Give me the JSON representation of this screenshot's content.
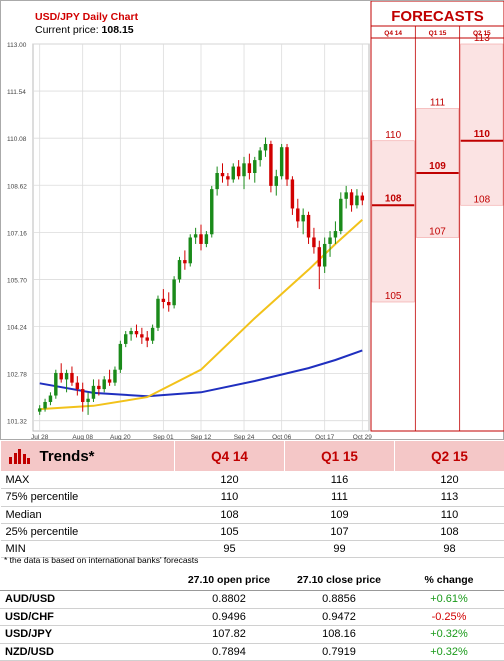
{
  "chart_title": "USD/JPY Daily Chart",
  "current_price_label": "Current price:",
  "current_price": "108.15",
  "forecast_header": "FORECASTS",
  "colors": {
    "accent_red": "#c00000",
    "up_candle": "#1a8a1a",
    "down_candle": "#d10000",
    "ma_short": "#f2c21a",
    "ma_long": "#1f2fbf",
    "forecast_fill": "#fbe3e3"
  },
  "chart_data": [
    {
      "type": "candlestick",
      "title": "USD/JPY Daily Chart",
      "y_ticks": [
        101.32,
        102.78,
        104.24,
        105.7,
        107.16,
        108.62,
        110.08,
        111.54,
        113.0
      ],
      "ylim": [
        101.0,
        113.0
      ],
      "x_tick_labels": [
        "Jul 28",
        "Aug 08",
        "Aug 20",
        "Sep 01",
        "Sep 12",
        "Sep 24",
        "Oct 06",
        "Oct 17",
        "Oct 29"
      ],
      "grid": true,
      "candles": [
        [
          101.6,
          101.8,
          101.5,
          101.7
        ],
        [
          101.7,
          102.0,
          101.6,
          101.9
        ],
        [
          101.9,
          102.2,
          101.8,
          102.1
        ],
        [
          102.1,
          102.9,
          102.0,
          102.8
        ],
        [
          102.8,
          103.1,
          102.5,
          102.6
        ],
        [
          102.6,
          102.9,
          102.2,
          102.8
        ],
        [
          102.8,
          103.0,
          102.4,
          102.5
        ],
        [
          102.5,
          102.7,
          102.1,
          102.3
        ],
        [
          102.3,
          102.5,
          101.6,
          101.9
        ],
        [
          101.9,
          102.2,
          101.5,
          102.0
        ],
        [
          102.0,
          102.6,
          101.9,
          102.4
        ],
        [
          102.4,
          102.6,
          102.1,
          102.3
        ],
        [
          102.3,
          102.7,
          102.2,
          102.6
        ],
        [
          102.6,
          102.9,
          102.4,
          102.5
        ],
        [
          102.5,
          103.0,
          102.4,
          102.9
        ],
        [
          102.9,
          103.8,
          102.8,
          103.7
        ],
        [
          103.7,
          104.1,
          103.6,
          104.0
        ],
        [
          104.0,
          104.2,
          103.8,
          104.1
        ],
        [
          104.1,
          104.3,
          103.9,
          104.0
        ],
        [
          104.0,
          104.2,
          103.7,
          103.9
        ],
        [
          103.9,
          104.1,
          103.6,
          103.8
        ],
        [
          103.8,
          104.3,
          103.7,
          104.2
        ],
        [
          104.2,
          105.2,
          104.1,
          105.1
        ],
        [
          105.1,
          105.4,
          104.8,
          105.0
        ],
        [
          105.0,
          105.3,
          104.7,
          104.9
        ],
        [
          104.9,
          105.8,
          104.8,
          105.7
        ],
        [
          105.7,
          106.4,
          105.6,
          106.3
        ],
        [
          106.3,
          106.6,
          106.0,
          106.2
        ],
        [
          106.2,
          107.1,
          106.1,
          107.0
        ],
        [
          107.0,
          107.3,
          106.8,
          107.1
        ],
        [
          107.1,
          107.4,
          106.6,
          106.8
        ],
        [
          106.8,
          107.2,
          106.7,
          107.1
        ],
        [
          107.1,
          108.6,
          107.0,
          108.5
        ],
        [
          108.5,
          109.2,
          108.3,
          109.0
        ],
        [
          109.0,
          109.3,
          108.7,
          108.9
        ],
        [
          108.9,
          109.0,
          108.6,
          108.8
        ],
        [
          108.8,
          109.3,
          108.7,
          109.2
        ],
        [
          109.2,
          109.4,
          108.8,
          108.9
        ],
        [
          108.9,
          109.5,
          108.5,
          109.3
        ],
        [
          109.3,
          109.6,
          108.8,
          109.0
        ],
        [
          109.0,
          109.5,
          108.7,
          109.4
        ],
        [
          109.4,
          109.8,
          109.2,
          109.7
        ],
        [
          109.7,
          110.1,
          109.5,
          109.9
        ],
        [
          109.9,
          110.0,
          108.4,
          108.6
        ],
        [
          108.6,
          109.1,
          108.3,
          108.9
        ],
        [
          108.9,
          109.9,
          108.8,
          109.8
        ],
        [
          109.8,
          109.9,
          108.6,
          108.8
        ],
        [
          108.8,
          108.9,
          107.7,
          107.9
        ],
        [
          107.9,
          108.2,
          107.3,
          107.5
        ],
        [
          107.5,
          107.9,
          107.1,
          107.7
        ],
        [
          107.7,
          107.8,
          106.8,
          107.0
        ],
        [
          107.0,
          107.3,
          106.5,
          106.7
        ],
        [
          106.7,
          106.9,
          105.4,
          106.1
        ],
        [
          106.1,
          107.0,
          105.9,
          106.8
        ],
        [
          106.8,
          107.2,
          106.4,
          107.0
        ],
        [
          107.0,
          107.5,
          106.8,
          107.2
        ],
        [
          107.2,
          108.4,
          107.1,
          108.2
        ],
        [
          108.2,
          108.6,
          107.9,
          108.4
        ],
        [
          108.4,
          108.5,
          107.8,
          108.0
        ],
        [
          108.0,
          108.5,
          107.9,
          108.3
        ],
        [
          108.3,
          108.4,
          108.0,
          108.15
        ]
      ],
      "ma_short": [
        [
          0,
          101.68
        ],
        [
          10,
          101.78
        ],
        [
          20,
          102.05
        ],
        [
          30,
          102.9
        ],
        [
          40,
          104.5
        ],
        [
          50,
          106.0
        ],
        [
          55,
          106.8
        ],
        [
          60,
          107.55
        ]
      ],
      "ma_long": [
        [
          0,
          102.48
        ],
        [
          10,
          102.18
        ],
        [
          20,
          102.08
        ],
        [
          30,
          102.2
        ],
        [
          40,
          102.55
        ],
        [
          50,
          102.95
        ],
        [
          55,
          103.2
        ],
        [
          60,
          103.5
        ]
      ],
      "forecasts": {
        "columns": [
          "Q4 14",
          "Q1 15",
          "Q2 15"
        ],
        "max": [
          110,
          111,
          113
        ],
        "median": [
          108,
          109,
          110
        ],
        "min": [
          105,
          107,
          108
        ]
      }
    }
  ],
  "trends": {
    "title": "Trends*",
    "columns": [
      "Q4 14",
      "Q1 15",
      "Q2 15"
    ],
    "rows": [
      {
        "label": "MAX",
        "values": [
          "120",
          "116",
          "120"
        ]
      },
      {
        "label": "75% percentile",
        "values": [
          "110",
          "111",
          "113"
        ]
      },
      {
        "label": "Median",
        "values": [
          "108",
          "109",
          "110"
        ]
      },
      {
        "label": "25% percentile",
        "values": [
          "105",
          "107",
          "108"
        ]
      },
      {
        "label": "MIN",
        "values": [
          "95",
          "99",
          "98"
        ]
      }
    ],
    "footnote": "* the data is based on international banks' forecasts"
  },
  "prices": {
    "headers": [
      "27.10 open price",
      "27.10 close price",
      "% change"
    ],
    "rows": [
      {
        "pair": "AUD/USD",
        "open": "0.8802",
        "close": "0.8856",
        "change": "+0.61%",
        "dir": "pos"
      },
      {
        "pair": "USD/CHF",
        "open": "0.9496",
        "close": "0.9472",
        "change": "-0.25%",
        "dir": "neg"
      },
      {
        "pair": "USD/JPY",
        "open": "107.82",
        "close": "108.16",
        "change": "+0.32%",
        "dir": "pos"
      },
      {
        "pair": "NZD/USD",
        "open": "0.7894",
        "close": "0.7919",
        "change": "+0.32%",
        "dir": "pos"
      }
    ]
  }
}
